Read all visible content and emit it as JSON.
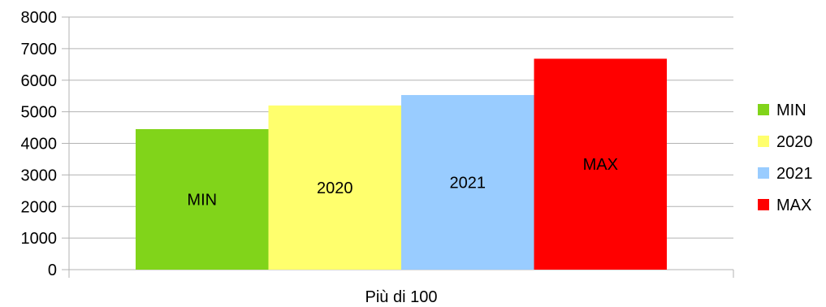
{
  "chart_data": {
    "type": "bar",
    "categories": [
      "Più di 100"
    ],
    "series": [
      {
        "name": "MIN",
        "values": [
          4450
        ],
        "color": "#81d41a",
        "label": "MIN"
      },
      {
        "name": "2020",
        "values": [
          5200
        ],
        "color": "#ffff6d",
        "label": "2020"
      },
      {
        "name": "2021",
        "values": [
          5530
        ],
        "color": "#99ccff",
        "label": "2021"
      },
      {
        "name": "MAX",
        "values": [
          6680
        ],
        "color": "#ff0000",
        "label": "MAX"
      }
    ],
    "ylim": [
      0,
      8000
    ],
    "yticks": [
      0,
      1000,
      2000,
      3000,
      4000,
      5000,
      6000,
      7000,
      8000
    ],
    "grid": true,
    "legend_position": "right",
    "gridline_color": "#b3b3b3"
  }
}
